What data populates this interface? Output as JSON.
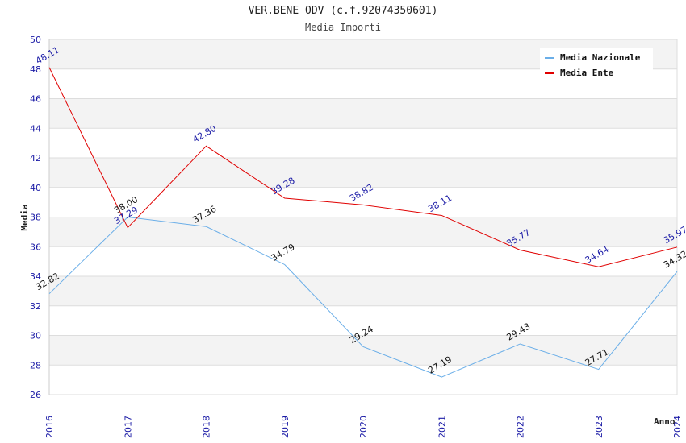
{
  "chart_data": {
    "type": "line",
    "title": "VER.BENE ODV (c.f.92074350601)",
    "subtitle": "Media Importi",
    "xlabel": "Anno",
    "ylabel": "Media",
    "ylim": [
      26,
      50
    ],
    "yticks": [
      26,
      28,
      30,
      32,
      34,
      36,
      38,
      40,
      42,
      44,
      46,
      48,
      50
    ],
    "x": [
      "2016",
      "2017",
      "2018",
      "2019",
      "2020",
      "2021",
      "2022",
      "2023",
      "2024"
    ],
    "series": [
      {
        "name": "Media Nazionale",
        "color": "#6aaee8",
        "values": [
          32.82,
          38.0,
          37.36,
          34.79,
          29.24,
          27.19,
          29.43,
          27.71,
          34.32
        ],
        "labels": [
          "32.82",
          "38.00",
          "37.36",
          "34.79",
          "29.24",
          "27.19",
          "29.43",
          "27.71",
          "34.32"
        ]
      },
      {
        "name": "Media Ente",
        "color": "#e00000",
        "values": [
          48.11,
          37.29,
          42.8,
          39.28,
          38.82,
          38.11,
          35.77,
          34.64,
          35.97
        ],
        "labels": [
          "48.11",
          "37.29",
          "42.80",
          "39.28",
          "38.82",
          "38.11",
          "35.77",
          "34.64",
          "35.97"
        ]
      }
    ],
    "grid": true,
    "legend": "top-right"
  }
}
